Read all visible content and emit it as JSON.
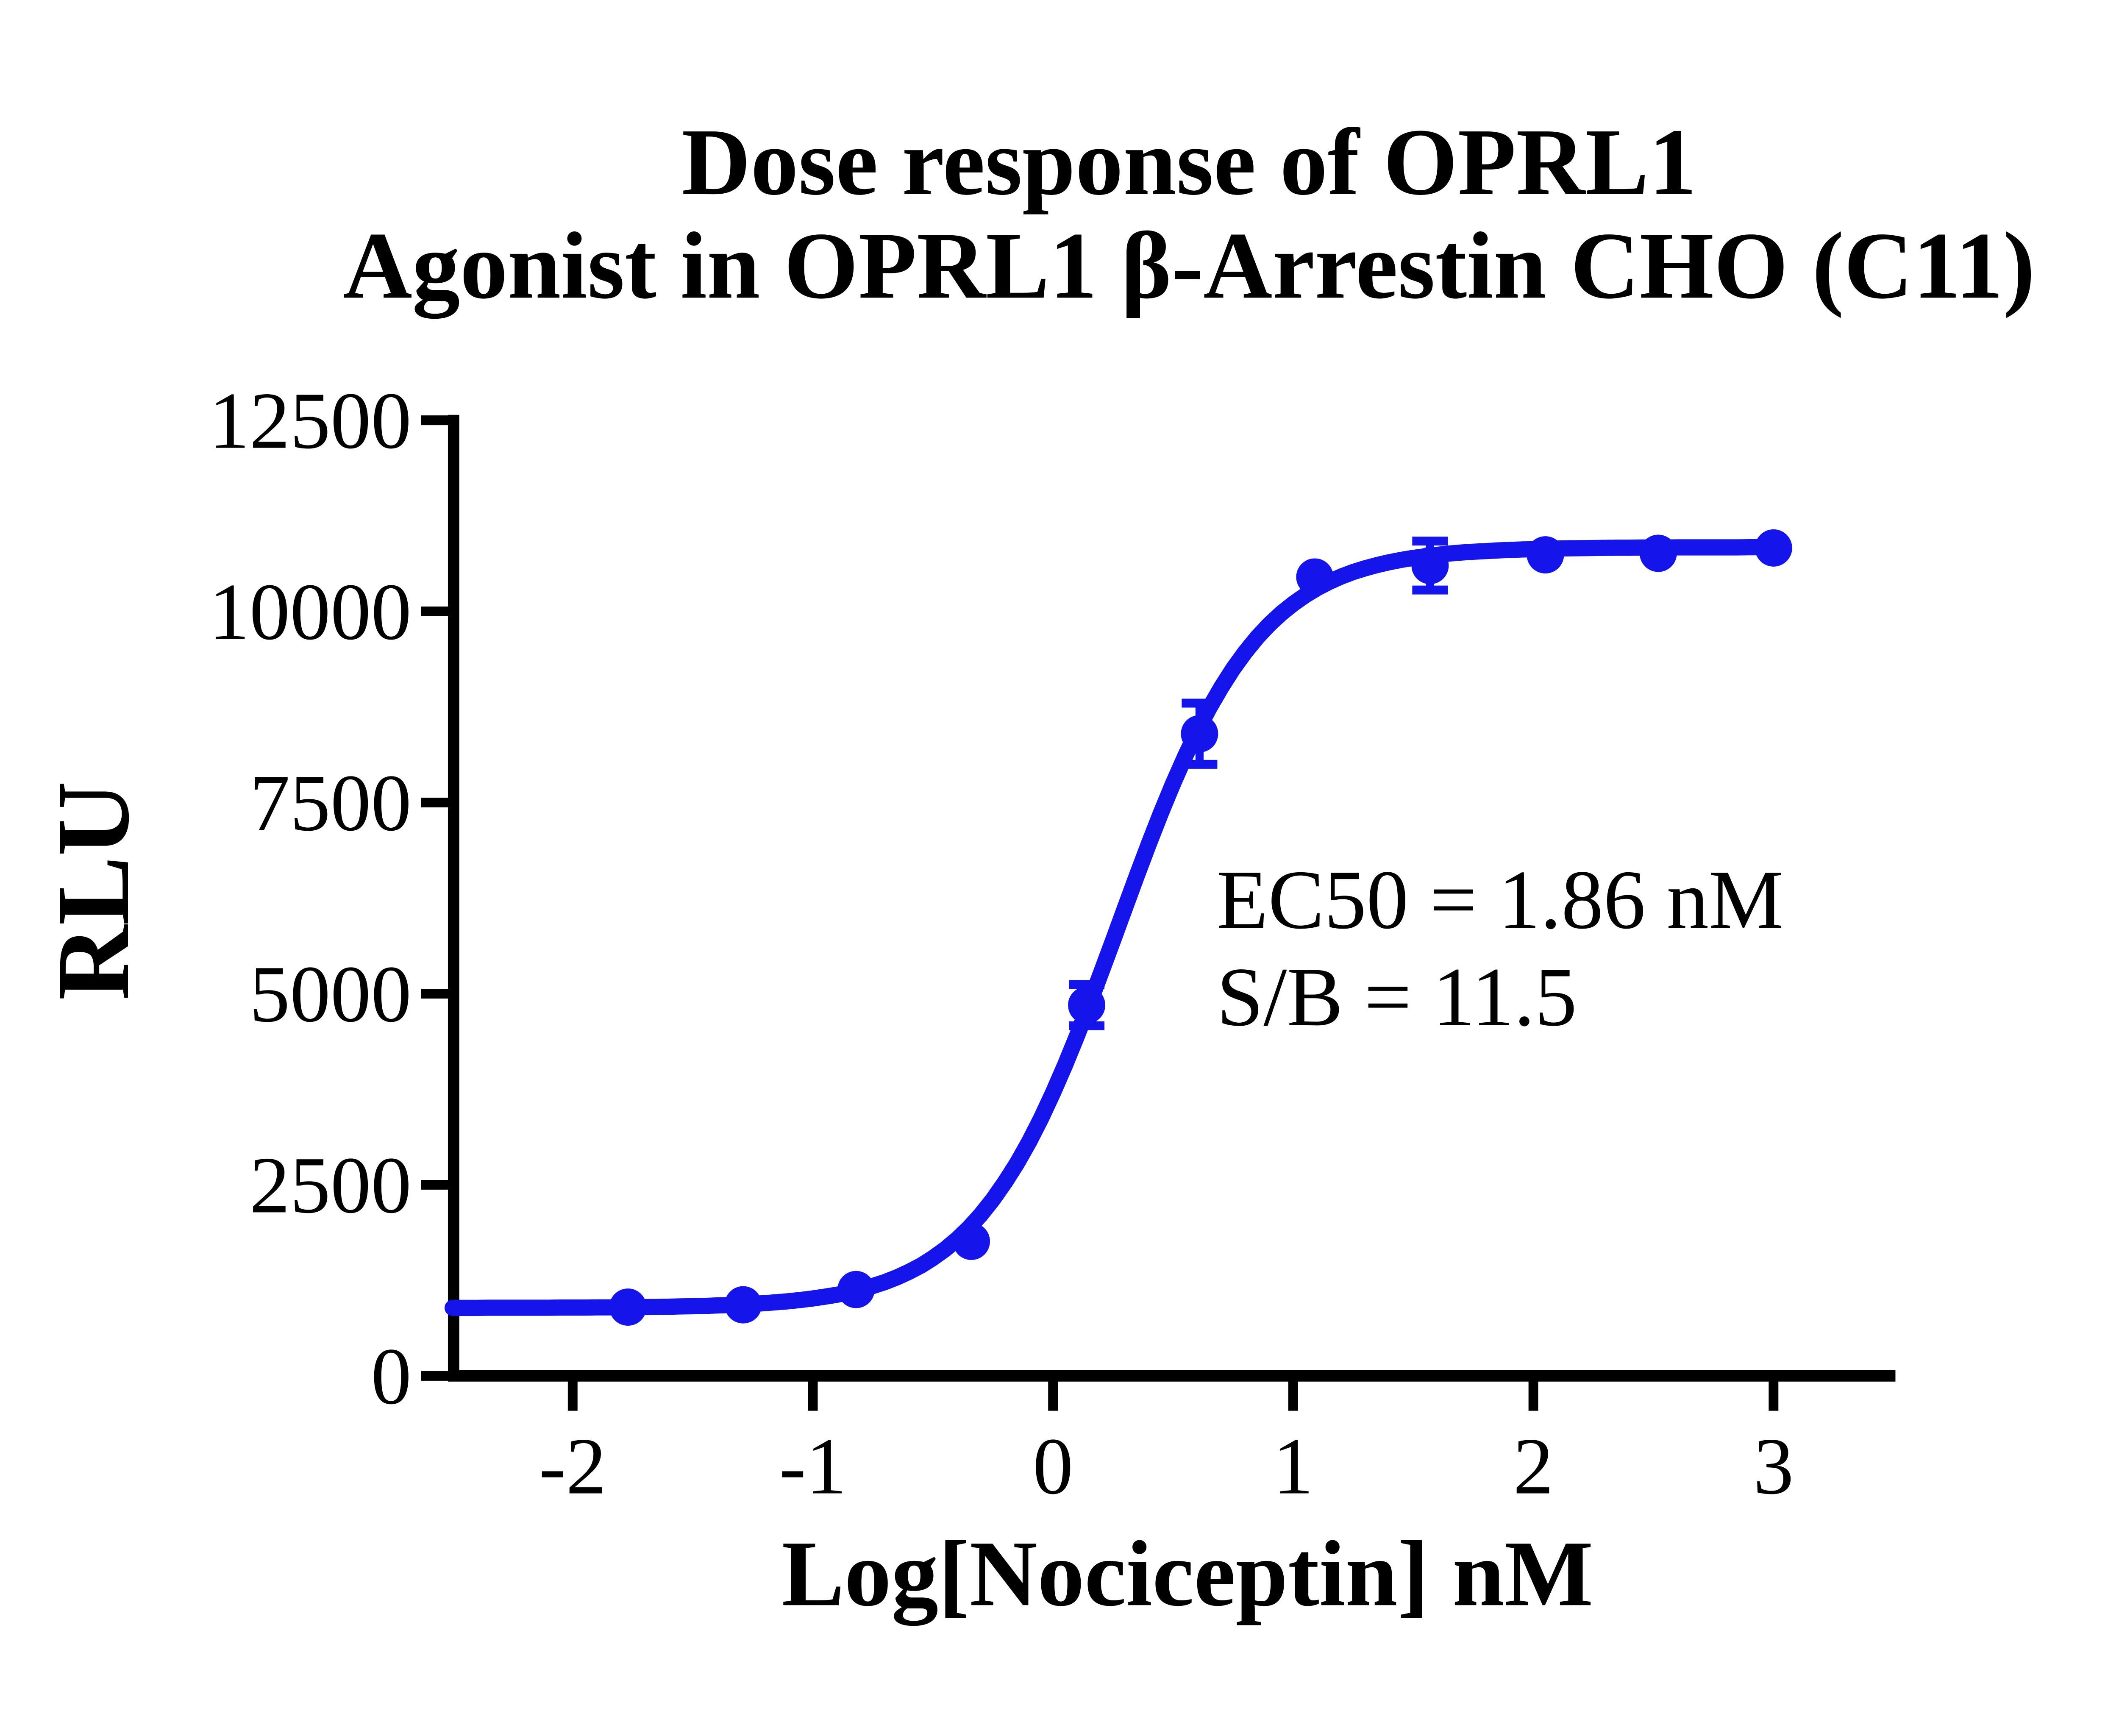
{
  "title": {
    "line1": "Dose response of OPRL1",
    "line2": "Agonist in OPRL1 β-Arrestin CHO (C11)"
  },
  "annotation": {
    "line1": "EC50 = 1.86 nM",
    "line2": "S/B = 11.5"
  },
  "chart_data": {
    "type": "line",
    "title": "Dose response of OPRL1 Agonist in OPRL1 β-Arrestin CHO (C11)",
    "xlabel": "Log[Nociceptin] nM",
    "ylabel": "RLU",
    "xlim": [
      -2.5,
      3.5
    ],
    "ylim": [
      0,
      12500
    ],
    "x_ticks": [
      "-2",
      "-1",
      "0",
      "1",
      "2",
      "3"
    ],
    "x_tick_values": [
      -2,
      -1,
      0,
      1,
      2,
      3
    ],
    "y_ticks": [
      "0",
      "2500",
      "5000",
      "7500",
      "10000",
      "12500"
    ],
    "y_tick_values": [
      0,
      2500,
      5000,
      7500,
      10000,
      12500
    ],
    "grid": false,
    "legend": "none",
    "series_name": "Nociceptin",
    "color": "#1414eb",
    "points": [
      {
        "x": -1.77,
        "y": 900
      },
      {
        "x": -1.29,
        "y": 930
      },
      {
        "x": -0.82,
        "y": 1130
      },
      {
        "x": -0.34,
        "y": 1760
      },
      {
        "x": 0.14,
        "y": 4850,
        "err": 270
      },
      {
        "x": 0.61,
        "y": 8400,
        "err": 400
      },
      {
        "x": 1.09,
        "y": 10450
      },
      {
        "x": 1.57,
        "y": 10600,
        "err": 320
      },
      {
        "x": 2.05,
        "y": 10740
      },
      {
        "x": 2.52,
        "y": 10760
      },
      {
        "x": 3.0,
        "y": 10830
      }
    ],
    "fit_curve": {
      "model": "4PL",
      "bottom": 890,
      "top": 10840,
      "logEC50": 0.2695,
      "hill": 1.5,
      "draw_range": [
        -2.5,
        3.0
      ]
    },
    "ec50_nM": 1.86,
    "signal_to_background": 11.5
  }
}
